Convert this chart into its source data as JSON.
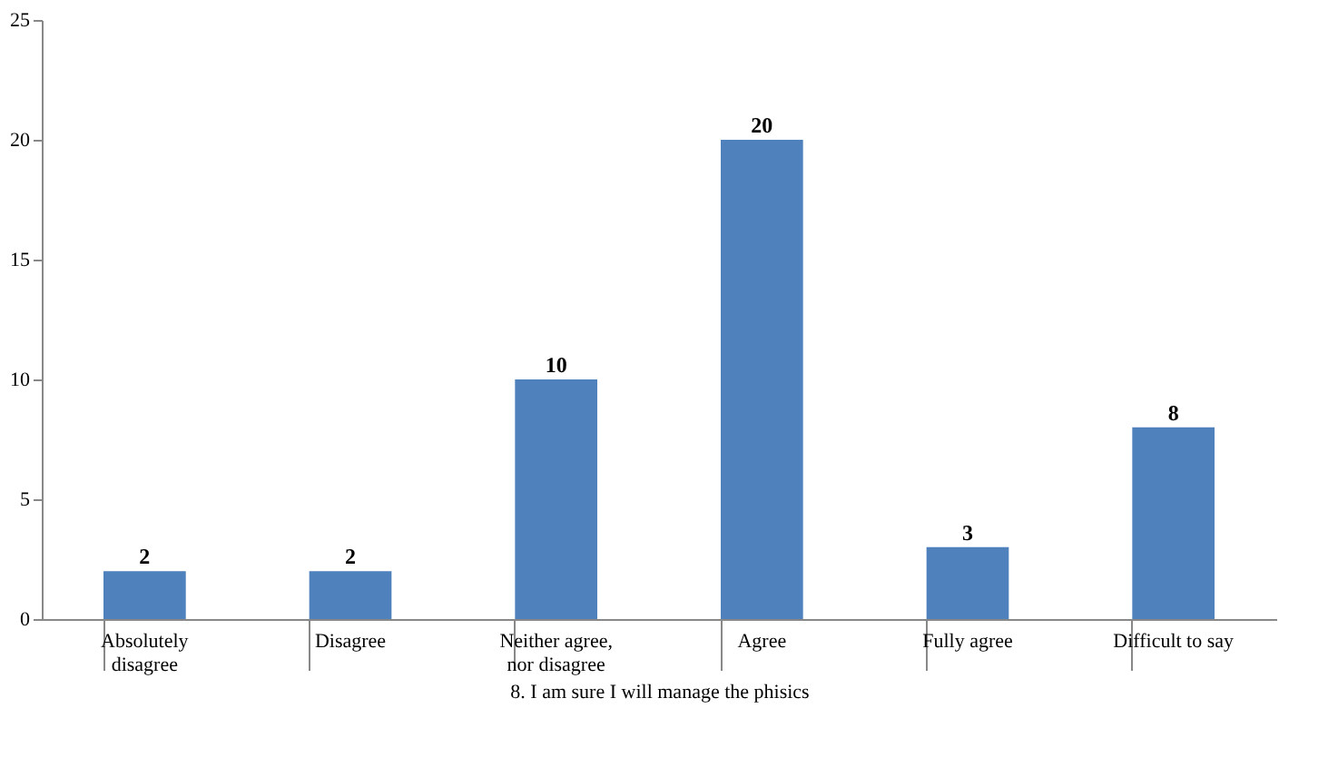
{
  "chart_data": {
    "type": "bar",
    "xlabel": "8. I am sure I will manage the phisics",
    "categories": [
      "Absolutely disagree",
      "Disagree",
      "Neither agree, nor disagree",
      "Agree",
      "Fully agree",
      "Difficult to say"
    ],
    "values": [
      2,
      2,
      10,
      20,
      3,
      8
    ],
    "color": "#4f81bd",
    "ylim": [
      0,
      25
    ],
    "yticks": [
      0,
      5,
      10,
      15,
      20,
      25
    ],
    "grid": false,
    "data_labels": true
  }
}
